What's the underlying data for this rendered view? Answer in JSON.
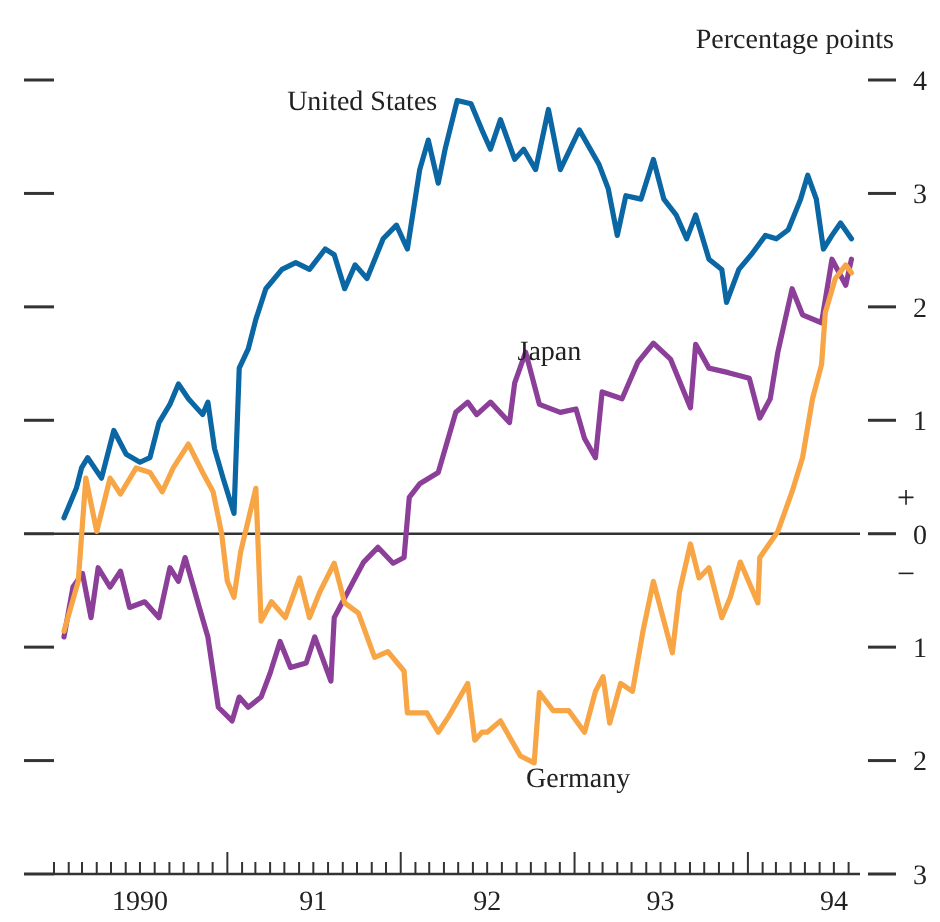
{
  "chart_data": {
    "type": "line",
    "ylabel": "Percentage points",
    "legend": false,
    "grid": false,
    "marker": "none",
    "line_style": "solid",
    "xlim": [
      "1990-01-01",
      "1994-08-25"
    ],
    "ylim": [
      -3,
      4
    ],
    "yticks": [
      {
        "value": -3,
        "label": "3"
      },
      {
        "value": -2,
        "label": "2"
      },
      {
        "value": -1,
        "label": "1"
      },
      0,
      1,
      2,
      3,
      4
    ],
    "xticks": [
      {
        "value": "1990-01-01",
        "label": null
      },
      {
        "value": "1990-02-01",
        "label": null
      },
      {
        "value": "1990-03-01",
        "label": null
      },
      {
        "value": "1990-04-01",
        "label": null
      },
      {
        "value": "1990-05-01",
        "label": null
      },
      {
        "value": "1990-06-01",
        "label": null
      },
      {
        "value": "1990-07-01",
        "label": "1990"
      },
      {
        "value": "1990-08-01",
        "label": null
      },
      {
        "value": "1990-09-01",
        "label": null
      },
      {
        "value": "1990-10-01",
        "label": null
      },
      {
        "value": "1990-11-01",
        "label": null
      },
      {
        "value": "1990-12-01",
        "label": null
      },
      {
        "value": "1991-01-01",
        "label": null
      },
      {
        "value": "1991-02-01",
        "label": null
      },
      {
        "value": "1991-03-01",
        "label": null
      },
      {
        "value": "1991-04-01",
        "label": null
      },
      {
        "value": "1991-05-01",
        "label": null
      },
      {
        "value": "1991-06-01",
        "label": null
      },
      {
        "value": "1991-07-01",
        "label": "91"
      },
      {
        "value": "1991-08-01",
        "label": null
      },
      {
        "value": "1991-09-01",
        "label": null
      },
      {
        "value": "1991-10-01",
        "label": null
      },
      {
        "value": "1991-11-01",
        "label": null
      },
      {
        "value": "1991-12-01",
        "label": null
      },
      {
        "value": "1992-01-01",
        "label": null
      },
      {
        "value": "1992-02-01",
        "label": null
      },
      {
        "value": "1992-03-01",
        "label": null
      },
      {
        "value": "1992-04-01",
        "label": null
      },
      {
        "value": "1992-05-01",
        "label": null
      },
      {
        "value": "1992-06-01",
        "label": null
      },
      {
        "value": "1992-07-01",
        "label": "92"
      },
      {
        "value": "1992-08-01",
        "label": null
      },
      {
        "value": "1992-09-01",
        "label": null
      },
      {
        "value": "1992-10-01",
        "label": null
      },
      {
        "value": "1992-11-01",
        "label": null
      },
      {
        "value": "1992-12-01",
        "label": null
      },
      {
        "value": "1993-01-01",
        "label": null
      },
      {
        "value": "1993-02-01",
        "label": null
      },
      {
        "value": "1993-03-01",
        "label": null
      },
      {
        "value": "1993-04-01",
        "label": null
      },
      {
        "value": "1993-05-01",
        "label": null
      },
      {
        "value": "1993-06-01",
        "label": null
      },
      {
        "value": "1993-07-01",
        "label": "93"
      },
      {
        "value": "1993-08-01",
        "label": null
      },
      {
        "value": "1993-09-01",
        "label": null
      },
      {
        "value": "1993-10-01",
        "label": null
      },
      {
        "value": "1993-11-01",
        "label": null
      },
      {
        "value": "1993-12-01",
        "label": null
      },
      {
        "value": "1994-01-01",
        "label": null
      },
      {
        "value": "1994-02-01",
        "label": null
      },
      {
        "value": "1994-03-01",
        "label": null
      },
      {
        "value": "1994-04-01",
        "label": null
      },
      {
        "value": "1994-05-01",
        "label": null
      },
      {
        "value": "1994-06-01",
        "label": null
      },
      {
        "value": "1994-07-01",
        "label": "94"
      },
      {
        "value": "1994-08-01",
        "label": null
      }
    ],
    "ref_lines": [
      {
        "axis": "y",
        "value": 0,
        "color": "#333333"
      }
    ],
    "annotations": [
      "+",
      "−"
    ],
    "series": [
      {
        "name": "United States",
        "color": "#0a67a3",
        "x": [
          "1990-01-22",
          "1990-02-17",
          "1990-02-28",
          "1990-03-13",
          "1990-04-11",
          "1990-05-07",
          "1990-06-02",
          "1990-07-01",
          "1990-07-22",
          "1990-08-10",
          "1990-09-02",
          "1990-09-20",
          "1990-10-11",
          "1990-11-10",
          "1990-11-21",
          "1990-12-05",
          "1990-12-23",
          "1991-01-15",
          "1991-01-26",
          "1991-02-14",
          "1991-03-02",
          "1991-03-23",
          "1991-04-26",
          "1991-05-25",
          "1991-06-23",
          "1991-07-26",
          "1991-08-14",
          "1991-09-05",
          "1991-09-27",
          "1991-10-22",
          "1991-11-25",
          "1991-12-23",
          "1992-01-15",
          "1992-02-10",
          "1992-02-28",
          "1992-03-20",
          "1992-04-04",
          "1992-04-29",
          "1992-05-28",
          "1992-06-20",
          "1992-07-08",
          "1992-07-29",
          "1992-08-28",
          "1992-09-16",
          "1992-10-11",
          "1992-11-07",
          "1992-12-02",
          "1993-01-11",
          "1993-02-21",
          "1993-03-13",
          "1993-04-01",
          "1993-04-19",
          "1993-05-21",
          "1993-06-16",
          "1993-07-08",
          "1993-08-03",
          "1993-08-25",
          "1993-09-13",
          "1993-10-11",
          "1993-11-07",
          "1993-11-17",
          "1993-12-13",
          "1994-01-08",
          "1994-02-07",
          "1994-03-02",
          "1994-03-27",
          "1994-04-22",
          "1994-05-07",
          "1994-05-25",
          "1994-06-09",
          "1994-06-27",
          "1994-07-15",
          "1994-08-07"
        ],
        "values": [
          0.14,
          0.4,
          0.58,
          0.67,
          0.49,
          0.91,
          0.7,
          0.63,
          0.67,
          0.98,
          1.14,
          1.32,
          1.19,
          1.05,
          1.16,
          0.75,
          0.49,
          0.18,
          1.46,
          1.63,
          1.89,
          2.16,
          2.33,
          2.39,
          2.33,
          2.51,
          2.46,
          2.16,
          2.37,
          2.25,
          2.6,
          2.72,
          2.51,
          3.21,
          3.47,
          3.09,
          3.4,
          3.82,
          3.79,
          3.56,
          3.39,
          3.65,
          3.3,
          3.39,
          3.21,
          3.74,
          3.21,
          3.56,
          3.26,
          3.04,
          2.63,
          2.98,
          2.95,
          3.3,
          2.95,
          2.81,
          2.6,
          2.81,
          2.42,
          2.33,
          2.04,
          2.33,
          2.46,
          2.63,
          2.6,
          2.68,
          2.95,
          3.16,
          2.95,
          2.51,
          2.63,
          2.74,
          2.6
        ]
      },
      {
        "name": "Japan",
        "color": "#8b3f98",
        "x": [
          "1990-01-22",
          "1990-02-10",
          "1990-03-02",
          "1990-03-20",
          "1990-04-04",
          "1990-04-29",
          "1990-05-21",
          "1990-06-09",
          "1990-07-11",
          "1990-08-10",
          "1990-09-02",
          "1990-09-20",
          "1990-10-04",
          "1990-11-03",
          "1990-11-21",
          "1990-12-13",
          "1991-01-11",
          "1991-01-26",
          "1991-02-14",
          "1991-03-13",
          "1991-04-01",
          "1991-04-22",
          "1991-05-14",
          "1991-06-16",
          "1991-07-04",
          "1991-08-07",
          "1991-08-14",
          "1991-09-27",
          "1991-10-15",
          "1991-11-14",
          "1991-12-16",
          "1992-01-08",
          "1992-01-19",
          "1992-02-10",
          "1992-03-20",
          "1992-04-26",
          "1992-05-21",
          "1992-06-09",
          "1992-07-08",
          "1992-08-17",
          "1992-08-28",
          "1992-09-20",
          "1992-10-19",
          "1992-12-02",
          "1993-01-04",
          "1993-01-22",
          "1993-02-14",
          "1993-02-28",
          "1993-04-11",
          "1993-05-14",
          "1993-06-16",
          "1993-07-22",
          "1993-09-02",
          "1993-09-13",
          "1993-10-11",
          "1993-11-21",
          "1994-01-04",
          "1994-01-26",
          "1994-02-17",
          "1994-03-05",
          "1994-04-04",
          "1994-04-26",
          "1994-06-05",
          "1994-06-27",
          "1994-07-26",
          "1994-08-07"
        ],
        "values": [
          -0.91,
          -0.47,
          -0.35,
          -0.74,
          -0.3,
          -0.47,
          -0.33,
          -0.65,
          -0.6,
          -0.74,
          -0.3,
          -0.42,
          -0.21,
          -0.65,
          -0.91,
          -1.53,
          -1.65,
          -1.44,
          -1.53,
          -1.44,
          -1.23,
          -0.95,
          -1.18,
          -1.14,
          -0.91,
          -1.3,
          -0.74,
          -0.39,
          -0.25,
          -0.12,
          -0.26,
          -0.21,
          0.32,
          0.44,
          0.54,
          1.07,
          1.16,
          1.05,
          1.16,
          0.98,
          1.33,
          1.6,
          1.14,
          1.07,
          1.1,
          0.84,
          0.67,
          1.25,
          1.19,
          1.51,
          1.68,
          1.54,
          1.11,
          1.67,
          1.46,
          1.42,
          1.37,
          1.02,
          1.19,
          1.6,
          2.16,
          1.93,
          1.86,
          2.42,
          2.19,
          2.42
        ]
      },
      {
        "name": "Germany",
        "color": "#f7a545",
        "x": [
          "1990-01-22",
          "1990-02-21",
          "1990-03-09",
          "1990-04-01",
          "1990-04-29",
          "1990-05-21",
          "1990-06-23",
          "1990-07-22",
          "1990-08-17",
          "1990-09-09",
          "1990-10-11",
          "1990-11-10",
          "1990-12-02",
          "1990-12-20",
          "1991-01-01",
          "1991-01-15",
          "1991-01-29",
          "1991-03-02",
          "1991-03-13",
          "1991-04-04",
          "1991-05-03",
          "1991-06-02",
          "1991-06-23",
          "1991-07-15",
          "1991-08-14",
          "1991-09-05",
          "1991-10-04",
          "1991-11-07",
          "1991-12-05",
          "1992-01-08",
          "1992-01-15",
          "1992-02-25",
          "1992-03-20",
          "1992-04-11",
          "1992-05-21",
          "1992-06-05",
          "1992-06-20",
          "1992-07-01",
          "1992-07-29",
          "1992-09-09",
          "1992-10-08",
          "1992-10-19",
          "1992-11-17",
          "1992-12-20",
          "1993-01-22",
          "1993-02-14",
          "1993-03-02",
          "1993-03-16",
          "1993-04-08",
          "1993-05-03",
          "1993-05-25",
          "1993-06-16",
          "1993-07-26",
          "1993-08-10",
          "1993-09-02",
          "1993-09-20",
          "1993-10-11",
          "1993-11-07",
          "1993-11-25",
          "1993-12-16",
          "1994-01-22",
          "1994-01-26",
          "1994-03-05",
          "1994-04-04",
          "1994-04-26",
          "1994-05-17",
          "1994-06-05",
          "1994-06-13",
          "1994-07-04",
          "1994-07-26",
          "1994-08-07"
        ],
        "values": [
          -0.86,
          -0.42,
          0.49,
          0.02,
          0.49,
          0.35,
          0.58,
          0.54,
          0.37,
          0.58,
          0.79,
          0.54,
          0.37,
          0.0,
          -0.42,
          -0.56,
          -0.16,
          0.4,
          -0.77,
          -0.6,
          -0.74,
          -0.39,
          -0.74,
          -0.51,
          -0.26,
          -0.61,
          -0.7,
          -1.09,
          -1.04,
          -1.21,
          -1.58,
          -1.58,
          -1.75,
          -1.61,
          -1.32,
          -1.82,
          -1.75,
          -1.75,
          -1.65,
          -1.96,
          -2.02,
          -1.4,
          -1.56,
          -1.56,
          -1.75,
          -1.39,
          -1.26,
          -1.67,
          -1.32,
          -1.39,
          -0.86,
          -0.42,
          -1.05,
          -0.51,
          -0.09,
          -0.39,
          -0.3,
          -0.74,
          -0.56,
          -0.25,
          -0.61,
          -0.21,
          0.02,
          0.37,
          0.67,
          1.19,
          1.49,
          1.95,
          2.25,
          2.37,
          2.3
        ]
      }
    ]
  }
}
